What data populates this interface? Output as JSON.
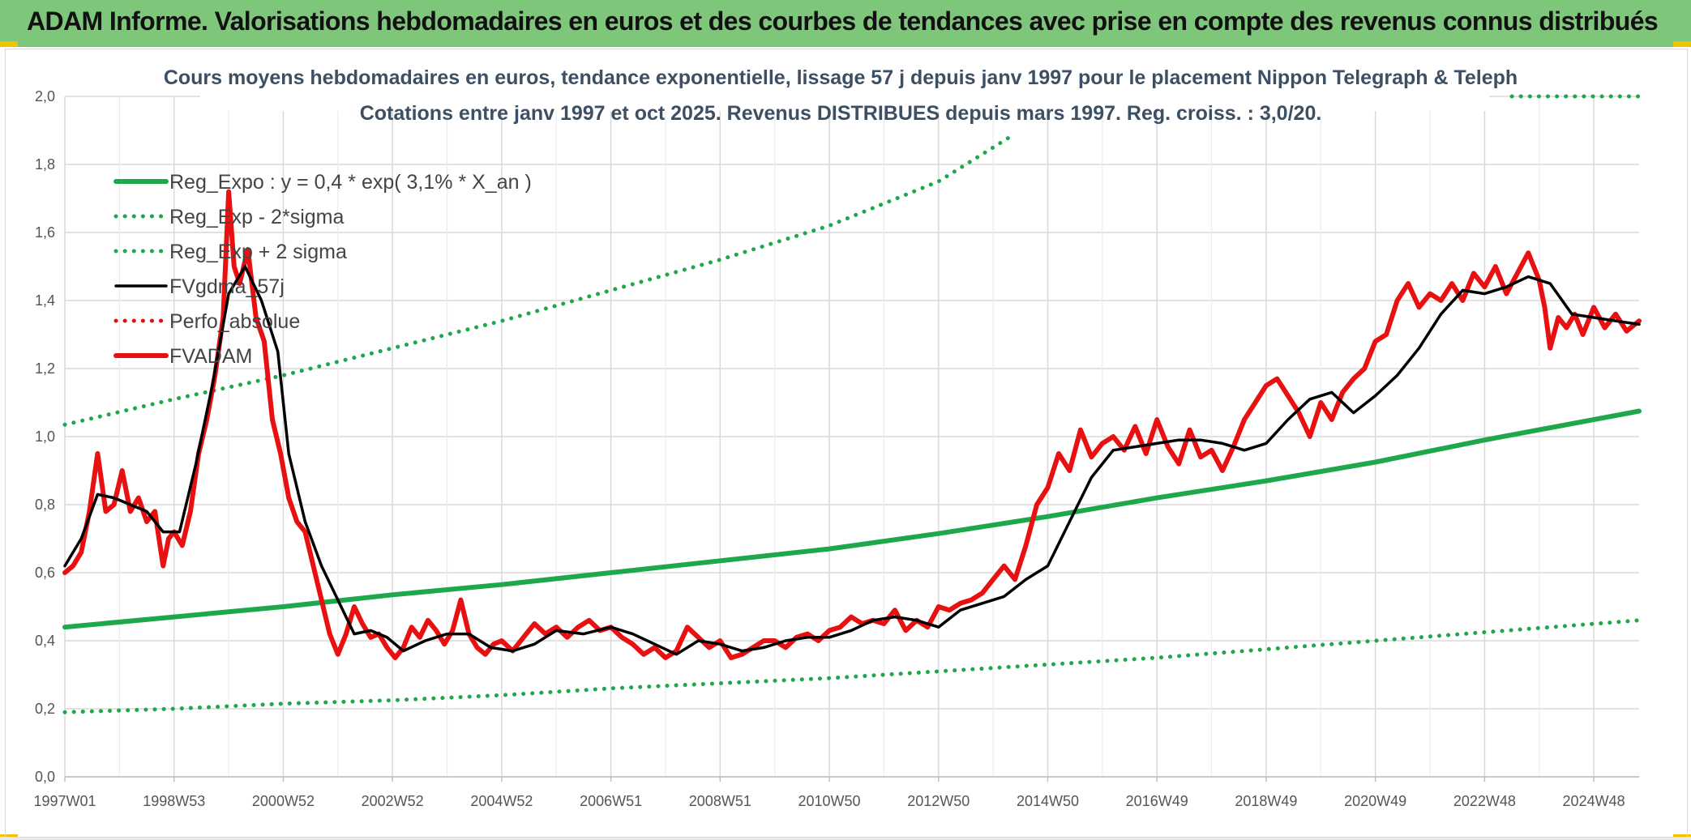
{
  "banner": "ADAM Informe. Valorisations hebdomadaires en euros et des courbes de tendances avec prise en compte des revenus connus distribués",
  "chart_data": {
    "type": "line",
    "title": "Cours moyens hebdomadaires en euros, tendance exponentielle, lissage 57 j depuis janv 1997 pour le placement Nippon Telegraph & Teleph",
    "subtitle": "Cotations entre janv 1997 et oct 2025. Revenus DISTRIBUES depuis mars 1997. Reg. croiss. : 3,0/20.",
    "ylim": [
      0,
      2.0
    ],
    "xlim": [
      1997.0,
      2025.83
    ],
    "y_ticks": [
      "0,0",
      "0,2",
      "0,4",
      "0,6",
      "0,8",
      "1,0",
      "1,2",
      "1,4",
      "1,6",
      "1,8",
      "2,0"
    ],
    "x_ticks": [
      {
        "label": "1997W01",
        "year": 1997.0
      },
      {
        "label": "1998W53",
        "year": 1999.0
      },
      {
        "label": "2000W52",
        "year": 2001.0
      },
      {
        "label": "2002W52",
        "year": 2003.0
      },
      {
        "label": "2004W52",
        "year": 2005.0
      },
      {
        "label": "2006W51",
        "year": 2007.0
      },
      {
        "label": "2008W51",
        "year": 2009.0
      },
      {
        "label": "2010W50",
        "year": 2011.0
      },
      {
        "label": "2012W50",
        "year": 2013.0
      },
      {
        "label": "2014W50",
        "year": 2015.0
      },
      {
        "label": "2016W49",
        "year": 2017.0
      },
      {
        "label": "2018W49",
        "year": 2019.0
      },
      {
        "label": "2020W49",
        "year": 2021.0
      },
      {
        "label": "2022W48",
        "year": 2023.0
      },
      {
        "label": "2024W48",
        "year": 2025.0
      }
    ],
    "grid": true,
    "legend_position": "top-left",
    "colors": {
      "reg": "#1ea84b",
      "band": "#1ea84b",
      "smooth": "#000000",
      "perfo": "#e01010",
      "fvadam": "#e81010"
    },
    "series": [
      {
        "name": "Reg_Expo : y = 0,4 * exp( 3,1% *  X_an )",
        "style": "solid-thick",
        "color": "#1ea84b",
        "x": [
          1997,
          1999,
          2001,
          2003,
          2005,
          2007,
          2009,
          2011,
          2013,
          2015,
          2017,
          2019,
          2021,
          2023,
          2025.83
        ],
        "y": [
          0.44,
          0.47,
          0.5,
          0.535,
          0.565,
          0.6,
          0.635,
          0.67,
          0.715,
          0.765,
          0.82,
          0.87,
          0.925,
          0.99,
          1.075
        ]
      },
      {
        "name": "Reg_Exp - 2*sigma",
        "style": "dotted",
        "color": "#1ea84b",
        "x": [
          1997,
          1999,
          2001,
          2003,
          2005,
          2007,
          2009,
          2011,
          2013,
          2015,
          2017,
          2019,
          2021,
          2023,
          2025.83
        ],
        "y": [
          0.19,
          0.2,
          0.215,
          0.225,
          0.24,
          0.26,
          0.275,
          0.29,
          0.31,
          0.33,
          0.35,
          0.375,
          0.4,
          0.425,
          0.46
        ]
      },
      {
        "name": "Reg_Exp + 2 sigma",
        "style": "dotted",
        "color": "#1ea84b",
        "x": [
          1997,
          1999,
          2001,
          2003,
          2005,
          2007,
          2009,
          2011,
          2013,
          2014.3
        ],
        "y": [
          1.035,
          1.11,
          1.18,
          1.26,
          1.34,
          1.43,
          1.52,
          1.62,
          1.75,
          1.88
        ]
      },
      {
        "name": "FVgdma_57j",
        "style": "solid",
        "color": "#000000",
        "x": [
          1997.0,
          1997.3,
          1997.6,
          1997.9,
          1998.2,
          1998.5,
          1998.8,
          1999.1,
          1999.4,
          1999.7,
          2000.0,
          2000.3,
          2000.6,
          2000.9,
          2001.1,
          2001.4,
          2001.7,
          2002.0,
          2002.3,
          2002.6,
          2002.9,
          2003.2,
          2003.6,
          2004.0,
          2004.4,
          2004.8,
          2005.2,
          2005.6,
          2006.0,
          2006.5,
          2007.0,
          2007.4,
          2007.8,
          2008.2,
          2008.6,
          2009.0,
          2009.4,
          2009.8,
          2010.2,
          2010.6,
          2011.0,
          2011.4,
          2011.8,
          2012.2,
          2012.6,
          2013.0,
          2013.4,
          2013.8,
          2014.2,
          2014.6,
          2015.0,
          2015.4,
          2015.8,
          2016.2,
          2016.6,
          2017.0,
          2017.4,
          2017.8,
          2018.2,
          2018.6,
          2019.0,
          2019.4,
          2019.8,
          2020.2,
          2020.6,
          2021.0,
          2021.4,
          2021.8,
          2022.2,
          2022.6,
          2023.0,
          2023.4,
          2023.8,
          2024.2,
          2024.6,
          2025.0,
          2025.4,
          2025.83
        ],
        "y": [
          0.62,
          0.7,
          0.83,
          0.82,
          0.8,
          0.78,
          0.72,
          0.72,
          0.92,
          1.15,
          1.42,
          1.5,
          1.4,
          1.25,
          0.95,
          0.75,
          0.62,
          0.52,
          0.42,
          0.43,
          0.41,
          0.37,
          0.4,
          0.42,
          0.42,
          0.38,
          0.37,
          0.39,
          0.43,
          0.42,
          0.44,
          0.42,
          0.39,
          0.36,
          0.4,
          0.39,
          0.37,
          0.38,
          0.4,
          0.41,
          0.41,
          0.43,
          0.46,
          0.47,
          0.46,
          0.44,
          0.49,
          0.51,
          0.53,
          0.58,
          0.62,
          0.75,
          0.88,
          0.96,
          0.97,
          0.98,
          0.99,
          0.99,
          0.98,
          0.96,
          0.98,
          1.05,
          1.11,
          1.13,
          1.07,
          1.12,
          1.18,
          1.26,
          1.36,
          1.43,
          1.42,
          1.44,
          1.47,
          1.45,
          1.36,
          1.35,
          1.34,
          1.33
        ]
      },
      {
        "name": "Perfo_absolue",
        "style": "dotted",
        "color": "#e01010",
        "x": [],
        "y": []
      },
      {
        "name": "FVADAM",
        "style": "solid-thick",
        "color": "#e81010",
        "x": [
          1997.0,
          1997.15,
          1997.3,
          1997.45,
          1997.6,
          1997.75,
          1997.9,
          1998.05,
          1998.2,
          1998.35,
          1998.5,
          1998.65,
          1998.8,
          1998.9,
          1999.0,
          1999.15,
          1999.3,
          1999.45,
          1999.6,
          1999.75,
          1999.9,
          2000.0,
          2000.1,
          2000.2,
          2000.35,
          2000.5,
          2000.65,
          2000.8,
          2000.95,
          2001.1,
          2001.25,
          2001.4,
          2001.55,
          2001.7,
          2001.85,
          2002.0,
          2002.15,
          2002.3,
          2002.45,
          2002.6,
          2002.75,
          2002.9,
          2003.05,
          2003.2,
          2003.35,
          2003.5,
          2003.65,
          2003.8,
          2003.95,
          2004.1,
          2004.25,
          2004.4,
          2004.55,
          2004.7,
          2004.85,
          2005.0,
          2005.2,
          2005.4,
          2005.6,
          2005.8,
          2006.0,
          2006.2,
          2006.4,
          2006.6,
          2006.8,
          2007.0,
          2007.2,
          2007.4,
          2007.6,
          2007.8,
          2008.0,
          2008.2,
          2008.4,
          2008.6,
          2008.8,
          2009.0,
          2009.2,
          2009.4,
          2009.6,
          2009.8,
          2010.0,
          2010.2,
          2010.4,
          2010.6,
          2010.8,
          2011.0,
          2011.2,
          2011.4,
          2011.6,
          2011.8,
          2012.0,
          2012.2,
          2012.4,
          2012.6,
          2012.8,
          2013.0,
          2013.2,
          2013.4,
          2013.6,
          2013.8,
          2014.0,
          2014.2,
          2014.4,
          2014.6,
          2014.8,
          2015.0,
          2015.2,
          2015.4,
          2015.6,
          2015.8,
          2016.0,
          2016.2,
          2016.4,
          2016.6,
          2016.8,
          2017.0,
          2017.2,
          2017.4,
          2017.6,
          2017.8,
          2018.0,
          2018.2,
          2018.4,
          2018.6,
          2018.8,
          2019.0,
          2019.2,
          2019.4,
          2019.6,
          2019.8,
          2020.0,
          2020.2,
          2020.4,
          2020.6,
          2020.8,
          2021.0,
          2021.2,
          2021.4,
          2021.6,
          2021.8,
          2022.0,
          2022.2,
          2022.4,
          2022.6,
          2022.8,
          2023.0,
          2023.2,
          2023.4,
          2023.6,
          2023.8,
          2024.0,
          2024.1,
          2024.2,
          2024.35,
          2024.5,
          2024.65,
          2024.8,
          2025.0,
          2025.2,
          2025.4,
          2025.6,
          2025.83
        ],
        "y": [
          0.6,
          0.62,
          0.66,
          0.78,
          0.95,
          0.78,
          0.8,
          0.9,
          0.78,
          0.82,
          0.75,
          0.78,
          0.62,
          0.7,
          0.72,
          0.68,
          0.78,
          0.95,
          1.05,
          1.18,
          1.35,
          1.72,
          1.5,
          1.45,
          1.55,
          1.35,
          1.28,
          1.05,
          0.95,
          0.82,
          0.75,
          0.72,
          0.62,
          0.52,
          0.42,
          0.36,
          0.42,
          0.5,
          0.45,
          0.41,
          0.42,
          0.38,
          0.35,
          0.38,
          0.44,
          0.41,
          0.46,
          0.43,
          0.39,
          0.43,
          0.52,
          0.42,
          0.38,
          0.36,
          0.39,
          0.4,
          0.37,
          0.41,
          0.45,
          0.42,
          0.44,
          0.41,
          0.44,
          0.46,
          0.43,
          0.44,
          0.41,
          0.39,
          0.36,
          0.38,
          0.35,
          0.37,
          0.44,
          0.41,
          0.38,
          0.4,
          0.35,
          0.36,
          0.38,
          0.4,
          0.4,
          0.38,
          0.41,
          0.42,
          0.4,
          0.43,
          0.44,
          0.47,
          0.45,
          0.46,
          0.45,
          0.49,
          0.43,
          0.46,
          0.44,
          0.5,
          0.49,
          0.51,
          0.52,
          0.54,
          0.58,
          0.62,
          0.58,
          0.68,
          0.8,
          0.85,
          0.95,
          0.9,
          1.02,
          0.94,
          0.98,
          1.0,
          0.96,
          1.03,
          0.95,
          1.05,
          0.97,
          0.92,
          1.02,
          0.94,
          0.96,
          0.9,
          0.97,
          1.05,
          1.1,
          1.15,
          1.17,
          1.12,
          1.07,
          1.0,
          1.1,
          1.05,
          1.13,
          1.17,
          1.2,
          1.28,
          1.3,
          1.4,
          1.45,
          1.38,
          1.42,
          1.4,
          1.45,
          1.4,
          1.48,
          1.44,
          1.5,
          1.42,
          1.48,
          1.54,
          1.46,
          1.38,
          1.26,
          1.35,
          1.32,
          1.36,
          1.3,
          1.38,
          1.32,
          1.36,
          1.31,
          1.34
        ]
      }
    ]
  }
}
